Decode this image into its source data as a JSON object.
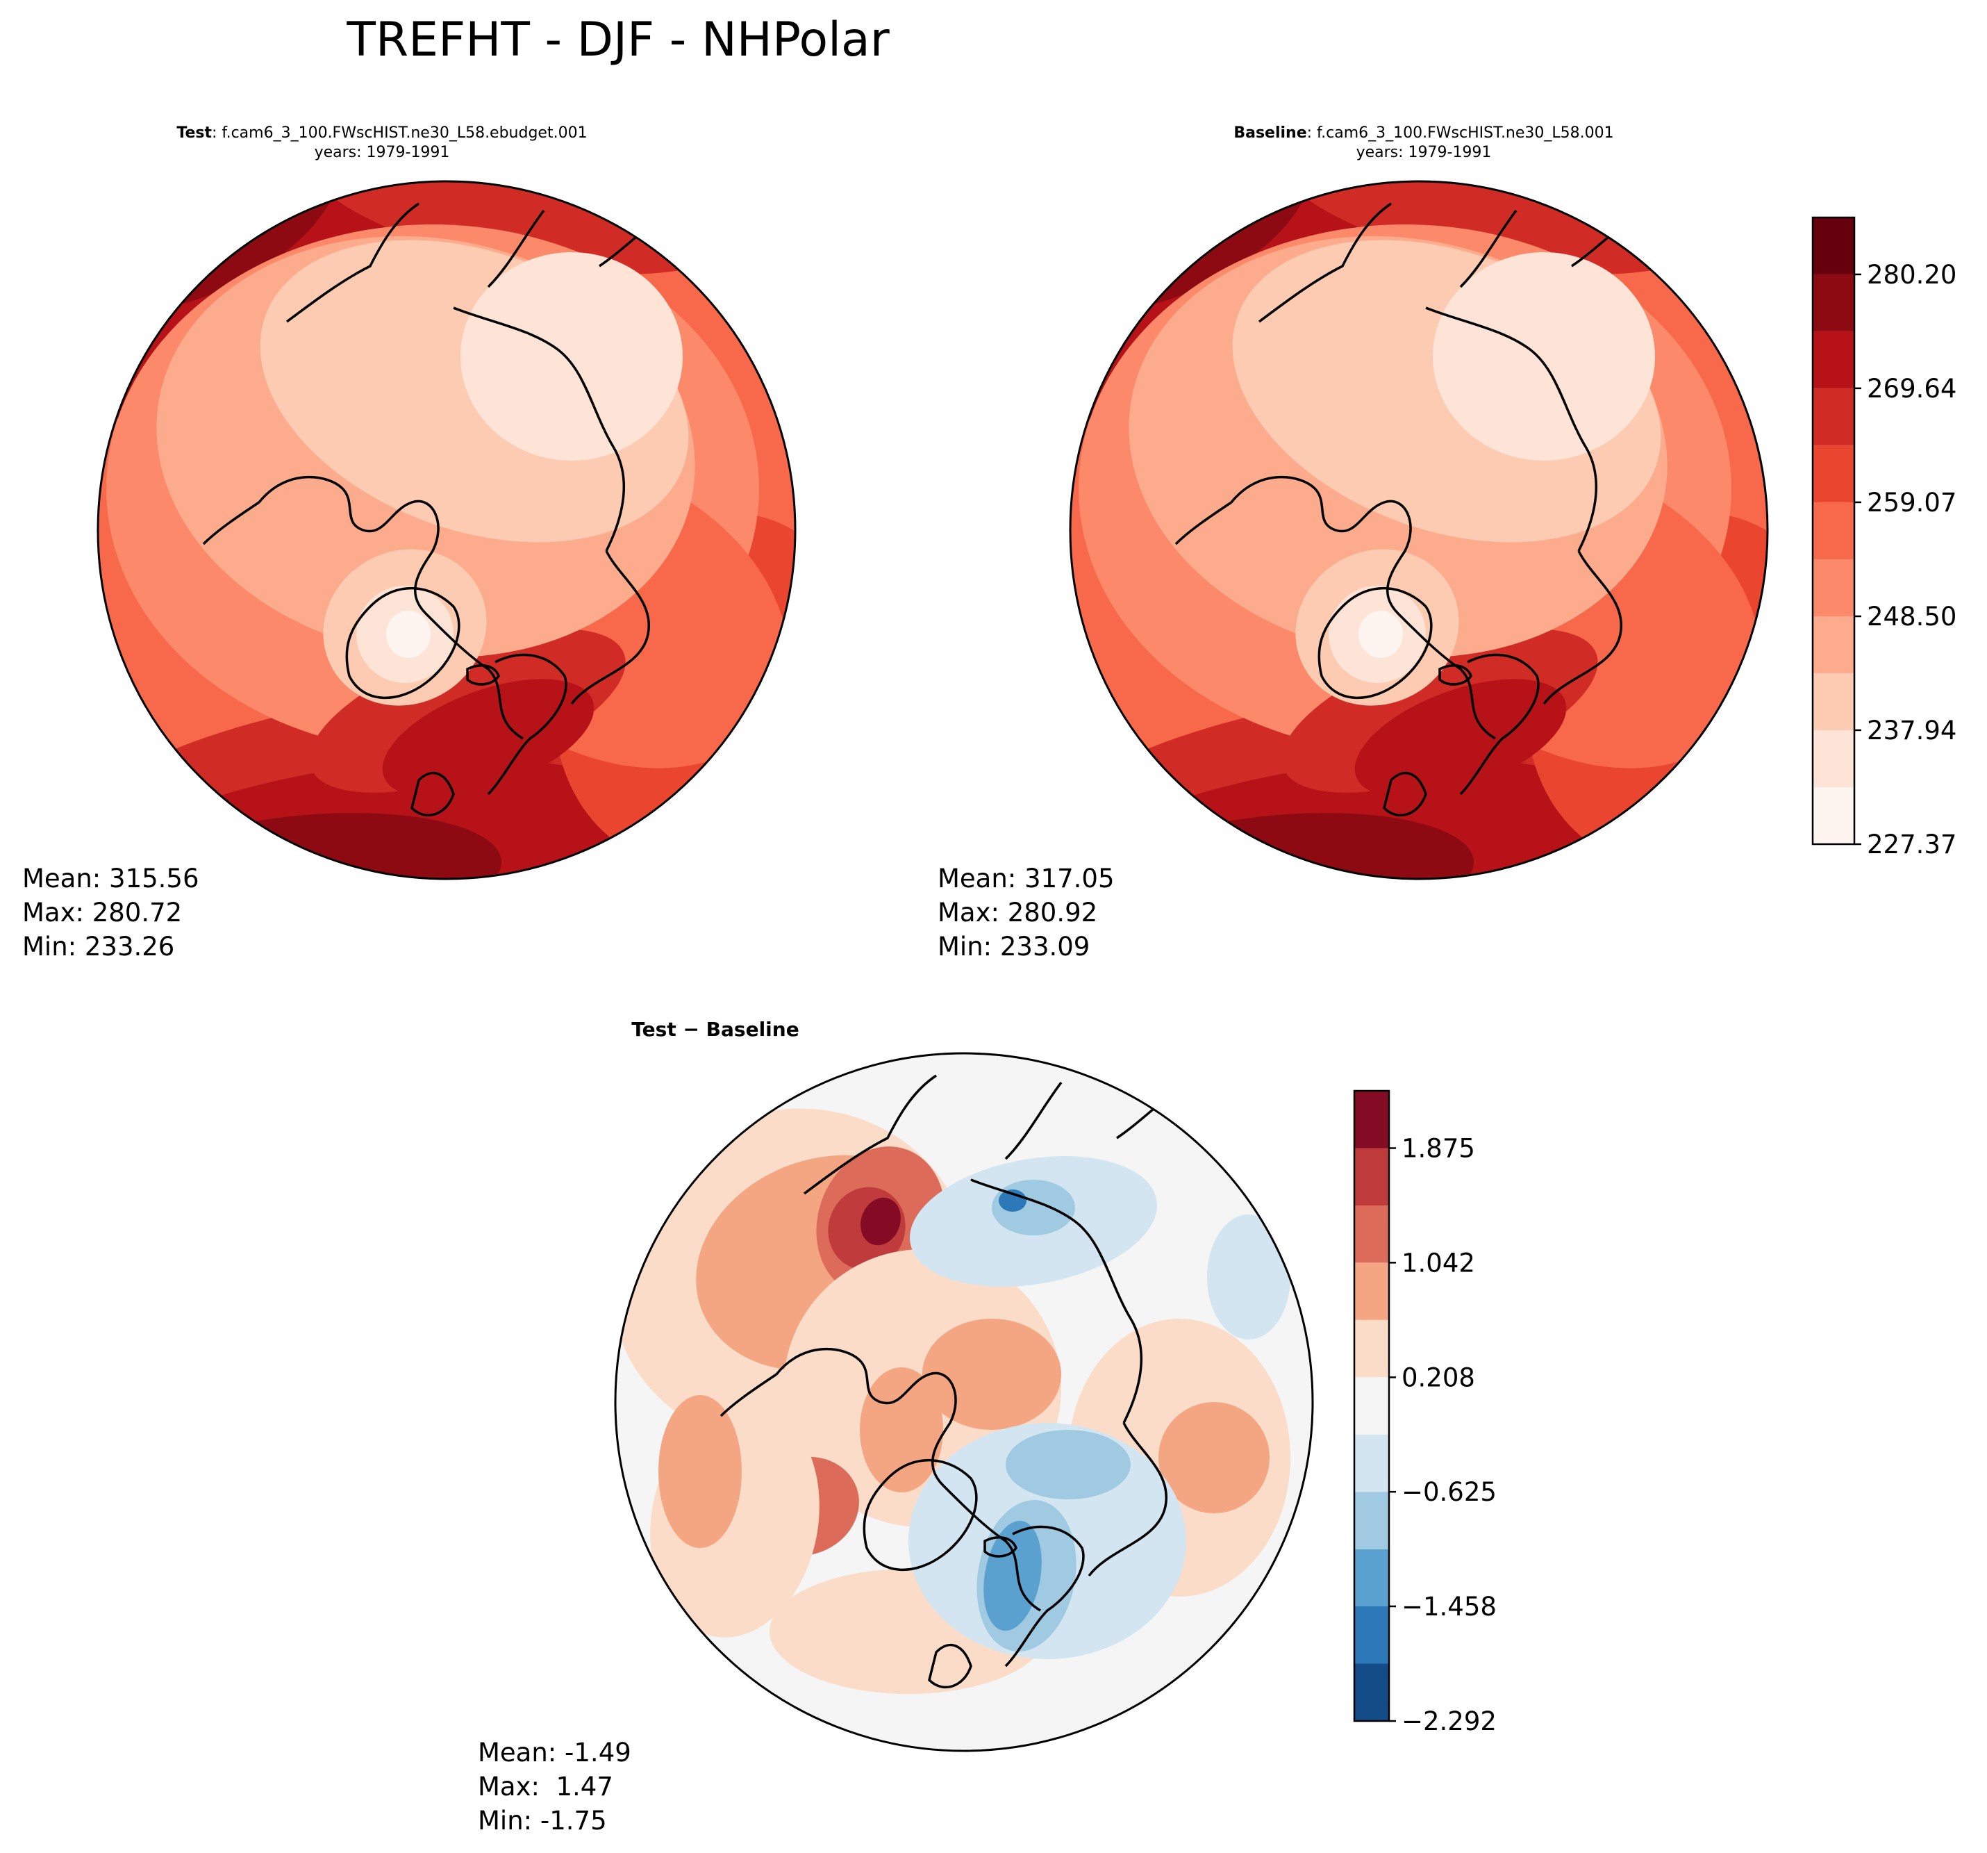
{
  "figure": {
    "title": "TREFHT - DJF - NHPolar"
  },
  "panels": [
    {
      "id": "test",
      "title_bold": "Test",
      "title_rest": ": f.cam6_3_100.FWscHIST.ne30_L58.ebudget.001",
      "subtitle": "years: 1979-1991",
      "stats": {
        "mean": "Mean: 315.56",
        "max": "Max: 280.72",
        "min": "Min: 233.26"
      }
    },
    {
      "id": "baseline",
      "title_bold": "Baseline",
      "title_rest": ": f.cam6_3_100.FWscHIST.ne30_L58.001",
      "subtitle": "years: 1979-1991",
      "stats": {
        "mean": "Mean: 317.05",
        "max": "Max: 280.92",
        "min": "Min: 233.09"
      }
    },
    {
      "id": "diff",
      "title_bold": "Test − Baseline",
      "title_rest": "",
      "subtitle": "",
      "stats": {
        "mean": "Mean: -1.49",
        "max": "Max:  1.47",
        "min": "Min: -1.75"
      }
    }
  ],
  "chart_data": [
    {
      "type": "heatmap",
      "projection": "north-polar-stereographic",
      "panel": "test",
      "colormap": "Reds",
      "colorbar": {
        "levels": [
          227.37,
          232.655,
          237.94,
          243.22,
          248.5,
          253.785,
          259.07,
          264.355,
          269.64,
          274.92,
          280.2,
          285.48
        ],
        "tick_labels": [
          "227.37",
          "237.94",
          "248.50",
          "259.07",
          "269.64",
          "280.20"
        ],
        "colors": [
          "#fff5f0",
          "#fee4d6",
          "#fdcbb1",
          "#fcac8c",
          "#fc8a6a",
          "#f8694b",
          "#e9452f",
          "#d12b25",
          "#b61218",
          "#8e0a12",
          "#67000d"
        ]
      },
      "stats": {
        "mean": 315.56,
        "max": 280.72,
        "min": 233.26
      }
    },
    {
      "type": "heatmap",
      "projection": "north-polar-stereographic",
      "panel": "baseline",
      "colormap": "Reds",
      "colorbar": "shared with test",
      "stats": {
        "mean": 317.05,
        "max": 280.92,
        "min": 233.09
      }
    },
    {
      "type": "heatmap",
      "projection": "north-polar-stereographic",
      "panel": "diff",
      "colormap": "RdBu_r",
      "colorbar": {
        "levels": [
          -2.292,
          -1.875,
          -1.458,
          -1.042,
          -0.625,
          -0.208,
          0.208,
          0.625,
          1.042,
          1.458,
          1.875,
          2.292
        ],
        "tick_labels": [
          "−2.292",
          "−1.458",
          "−0.625",
          "0.208",
          "1.042",
          "1.875"
        ],
        "colors": [
          "#134c87",
          "#2c78b8",
          "#5aa1cf",
          "#9fcae1",
          "#d2e5f0",
          "#f5f5f5",
          "#fbdcc9",
          "#f4a582",
          "#dc6b59",
          "#c03b3b",
          "#840b24"
        ]
      },
      "stats": {
        "mean": -1.49,
        "max": 1.47,
        "min": -1.75
      }
    }
  ]
}
